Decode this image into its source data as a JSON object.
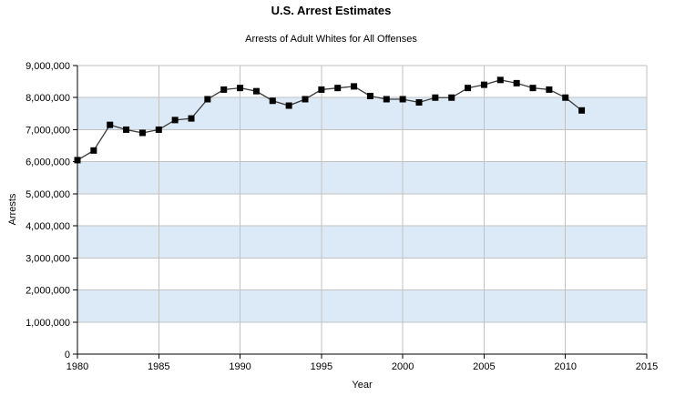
{
  "header": {
    "title": "U.S. Arrest Estimates",
    "subtitle": "Arrests of Adult Whites for All Offenses"
  },
  "colors": {
    "band": "#dce9f6",
    "grid": "#c2c2c2",
    "axis": "#000000",
    "line": "#3c3c3c",
    "marker": "#000000",
    "text": "#000000",
    "background": "#ffffff"
  },
  "chart_data": {
    "type": "line",
    "title": "U.S. Arrest Estimates",
    "subtitle": "Arrests of Adult Whites for All Offenses",
    "xlabel": "Year",
    "ylabel": "Arrests",
    "xlim": [
      1980,
      2015
    ],
    "ylim": [
      0,
      9000000
    ],
    "xticks": [
      1980,
      1985,
      1990,
      1995,
      2000,
      2005,
      2010,
      2015
    ],
    "yticks": [
      0,
      1000000,
      2000000,
      3000000,
      4000000,
      5000000,
      6000000,
      7000000,
      8000000,
      9000000
    ],
    "ytick_labels": [
      "0",
      "1,000,000",
      "2,000,000",
      "3,000,000",
      "4,000,000",
      "5,000,000",
      "6,000,000",
      "7,000,000",
      "8,000,000",
      "9,000,000"
    ],
    "grid": true,
    "legend_position": "none",
    "marker_shape": "square",
    "shaded_bands": [
      [
        1000000,
        2000000
      ],
      [
        3000000,
        4000000
      ],
      [
        5000000,
        6000000
      ],
      [
        7000000,
        8000000
      ]
    ],
    "x": [
      1980,
      1981,
      1982,
      1983,
      1984,
      1985,
      1986,
      1987,
      1988,
      1989,
      1990,
      1991,
      1992,
      1993,
      1994,
      1995,
      1996,
      1997,
      1998,
      1999,
      2000,
      2001,
      2002,
      2003,
      2004,
      2005,
      2006,
      2007,
      2008,
      2009,
      2010,
      2011
    ],
    "series": [
      {
        "name": "Arrests of Adult Whites for All Offenses",
        "values": [
          6050000,
          6350000,
          7150000,
          7000000,
          6900000,
          7000000,
          7300000,
          7350000,
          7950000,
          8250000,
          8300000,
          8200000,
          7900000,
          7750000,
          7950000,
          8250000,
          8300000,
          8350000,
          8050000,
          7950000,
          7950000,
          7850000,
          8000000,
          8000000,
          8300000,
          8400000,
          8550000,
          8450000,
          8300000,
          8250000,
          8000000,
          7600000
        ]
      }
    ]
  }
}
